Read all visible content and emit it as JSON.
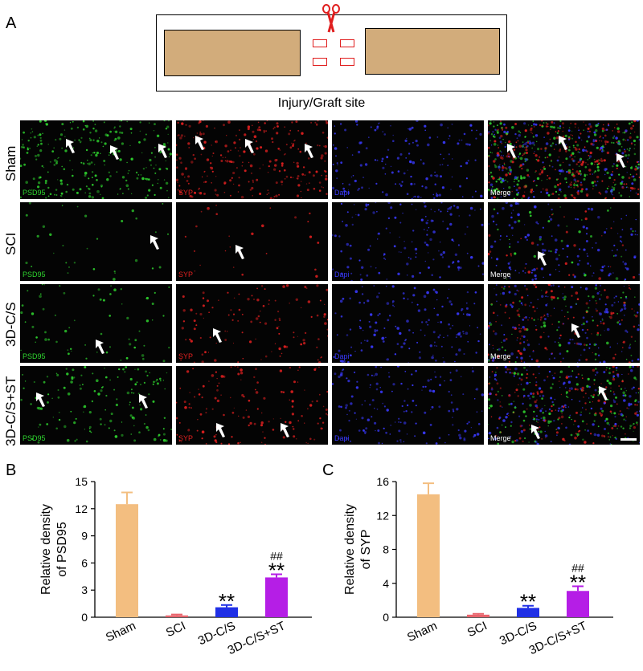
{
  "panel_a": {
    "letter": "A",
    "caption": "Injury/Graft site",
    "row_labels": [
      "Sham",
      "SCI",
      "3D-C/S",
      "3D-C/S+ST"
    ],
    "channel_labels": [
      "PSD95",
      "SYP",
      "Dapi",
      "Merge"
    ],
    "colors": {
      "green": "#2fd52f",
      "red": "#e02020",
      "blue": "#3a3aff",
      "cord": "#d2ac7b",
      "scissors": "#e01e1e"
    },
    "icons": [
      "scissors-icon",
      "arrow-icon",
      "scale-bar"
    ]
  },
  "chart_data": [
    {
      "panel": "B",
      "type": "bar",
      "categories": [
        "Sham",
        "SCI",
        "3D-C/S",
        "3D-C/S+ST"
      ],
      "values": [
        12.5,
        0.2,
        1.1,
        4.4
      ],
      "errors": [
        1.3,
        0.1,
        0.25,
        0.35
      ],
      "colors": [
        "#f3be80",
        "#e8646c",
        "#2030e6",
        "#b51ee6"
      ],
      "annotations": [
        "",
        "",
        "**",
        "**\n##"
      ],
      "yticks": [
        "0",
        "3",
        "6",
        "9",
        "12",
        "15"
      ],
      "ylim": [
        0,
        15
      ],
      "ylabel_line1": "Relative density",
      "ylabel_line2": "of PSD95",
      "xlabel": ""
    },
    {
      "panel": "C",
      "type": "bar",
      "categories": [
        "Sham",
        "SCI",
        "3D-C/S",
        "3D-C/S+ST"
      ],
      "values": [
        14.5,
        0.3,
        1.1,
        3.1
      ],
      "errors": [
        1.3,
        0.1,
        0.25,
        0.55
      ],
      "colors": [
        "#f3be80",
        "#e8646c",
        "#2030e6",
        "#b51ee6"
      ],
      "annotations": [
        "",
        "",
        "**",
        "**\n##"
      ],
      "yticks": [
        "0",
        "4",
        "8",
        "12",
        "16"
      ],
      "ylim": [
        0,
        16
      ],
      "ylabel_line1": "Relative density",
      "ylabel_line2": "of SYP",
      "xlabel": ""
    }
  ]
}
